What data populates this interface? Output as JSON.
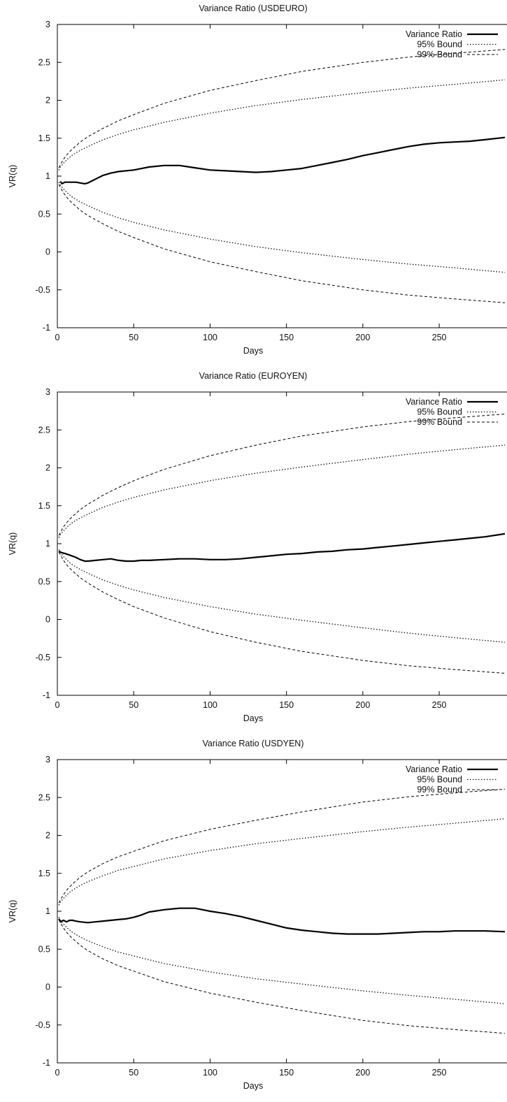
{
  "chart_data": [
    {
      "type": "line",
      "title": "Variance Ratio (USDEURO)",
      "xlabel": "Days",
      "ylabel": "VR(q)",
      "xlim": [
        0,
        293
      ],
      "ylim": [
        -1,
        3
      ],
      "xticks": [
        0,
        50,
        100,
        150,
        200,
        250
      ],
      "yticks": [
        -1,
        -0.5,
        0,
        0.5,
        1,
        1.5,
        2,
        2.5,
        3
      ],
      "legend_position": "top-right",
      "grid": false,
      "series": [
        {
          "name": "Variance Ratio",
          "style": "solid",
          "x": [
            2,
            3,
            5,
            8,
            12,
            15,
            18,
            20,
            25,
            30,
            35,
            40,
            50,
            60,
            70,
            80,
            90,
            100,
            110,
            120,
            130,
            140,
            150,
            160,
            170,
            180,
            190,
            200,
            210,
            220,
            230,
            240,
            250,
            260,
            270,
            280,
            293
          ],
          "y": [
            0.93,
            0.9,
            0.92,
            0.92,
            0.92,
            0.91,
            0.9,
            0.91,
            0.96,
            1.01,
            1.04,
            1.06,
            1.08,
            1.12,
            1.14,
            1.14,
            1.11,
            1.08,
            1.07,
            1.06,
            1.05,
            1.06,
            1.08,
            1.1,
            1.14,
            1.18,
            1.22,
            1.27,
            1.31,
            1.35,
            1.39,
            1.42,
            1.44,
            1.45,
            1.46,
            1.48,
            1.51
          ]
        },
        {
          "name": "95% Bound",
          "style": "dotted",
          "x": [
            1,
            2,
            4,
            7,
            10,
            15,
            20,
            30,
            40,
            50,
            70,
            100,
            130,
            160,
            200,
            230,
            260,
            293
          ],
          "y_upper": [
            1.08,
            1.12,
            1.17,
            1.23,
            1.28,
            1.34,
            1.39,
            1.48,
            1.55,
            1.61,
            1.71,
            1.83,
            1.93,
            2.01,
            2.1,
            2.16,
            2.21,
            2.27
          ],
          "y_lower": [
            0.92,
            0.88,
            0.83,
            0.77,
            0.72,
            0.66,
            0.61,
            0.52,
            0.45,
            0.39,
            0.29,
            0.17,
            0.07,
            -0.01,
            -0.1,
            -0.16,
            -0.21,
            -0.27
          ]
        },
        {
          "name": "99% Bound",
          "style": "dashed",
          "x": [
            1,
            2,
            4,
            7,
            10,
            15,
            20,
            30,
            40,
            50,
            70,
            100,
            130,
            160,
            200,
            230,
            260,
            293
          ],
          "y_upper": [
            1.11,
            1.15,
            1.22,
            1.3,
            1.36,
            1.45,
            1.52,
            1.63,
            1.73,
            1.81,
            1.96,
            2.13,
            2.26,
            2.38,
            2.5,
            2.57,
            2.62,
            2.67
          ],
          "y_lower": [
            0.89,
            0.85,
            0.78,
            0.7,
            0.64,
            0.55,
            0.48,
            0.37,
            0.27,
            0.19,
            0.04,
            -0.13,
            -0.26,
            -0.38,
            -0.5,
            -0.57,
            -0.62,
            -0.67
          ]
        }
      ]
    },
    {
      "type": "line",
      "title": "Variance Ratio (EUROYEN)",
      "xlabel": "Days",
      "ylabel": "VR(q)",
      "xlim": [
        0,
        293
      ],
      "ylim": [
        -1,
        3
      ],
      "xticks": [
        0,
        50,
        100,
        150,
        200,
        250
      ],
      "yticks": [
        -1,
        -0.5,
        0,
        0.5,
        1,
        1.5,
        2,
        2.5,
        3
      ],
      "legend_position": "top-right",
      "grid": false,
      "series": [
        {
          "name": "Variance Ratio",
          "style": "solid",
          "x": [
            1,
            3,
            5,
            8,
            12,
            15,
            18,
            20,
            25,
            30,
            35,
            40,
            45,
            50,
            55,
            60,
            70,
            80,
            90,
            100,
            110,
            120,
            130,
            140,
            150,
            160,
            170,
            180,
            190,
            200,
            210,
            220,
            230,
            240,
            250,
            260,
            270,
            280,
            293
          ],
          "y": [
            0.9,
            0.88,
            0.87,
            0.85,
            0.82,
            0.79,
            0.77,
            0.77,
            0.78,
            0.79,
            0.8,
            0.78,
            0.77,
            0.77,
            0.78,
            0.78,
            0.79,
            0.8,
            0.8,
            0.79,
            0.79,
            0.8,
            0.82,
            0.84,
            0.86,
            0.87,
            0.89,
            0.9,
            0.92,
            0.93,
            0.95,
            0.97,
            0.99,
            1.01,
            1.03,
            1.05,
            1.07,
            1.09,
            1.13
          ]
        },
        {
          "name": "95% Bound",
          "style": "dotted",
          "x": [
            1,
            2,
            4,
            7,
            10,
            15,
            20,
            30,
            40,
            50,
            70,
            100,
            130,
            160,
            200,
            230,
            260,
            293
          ],
          "y_upper": [
            1.08,
            1.12,
            1.17,
            1.23,
            1.28,
            1.34,
            1.39,
            1.48,
            1.55,
            1.61,
            1.71,
            1.83,
            1.93,
            2.01,
            2.11,
            2.18,
            2.24,
            2.3
          ],
          "y_lower": [
            0.92,
            0.88,
            0.83,
            0.77,
            0.72,
            0.66,
            0.61,
            0.52,
            0.45,
            0.39,
            0.29,
            0.17,
            0.07,
            -0.01,
            -0.11,
            -0.18,
            -0.24,
            -0.3
          ]
        },
        {
          "name": "99% Bound",
          "style": "dashed",
          "x": [
            1,
            2,
            4,
            7,
            10,
            15,
            20,
            30,
            40,
            50,
            70,
            100,
            130,
            160,
            200,
            230,
            260,
            293
          ],
          "y_upper": [
            1.11,
            1.15,
            1.22,
            1.3,
            1.36,
            1.45,
            1.52,
            1.64,
            1.74,
            1.83,
            1.98,
            2.16,
            2.3,
            2.42,
            2.54,
            2.61,
            2.66,
            2.71
          ],
          "y_lower": [
            0.89,
            0.85,
            0.78,
            0.7,
            0.64,
            0.55,
            0.48,
            0.36,
            0.26,
            0.17,
            0.02,
            -0.16,
            -0.3,
            -0.42,
            -0.54,
            -0.61,
            -0.66,
            -0.71
          ]
        }
      ]
    },
    {
      "type": "line",
      "title": "Variance Ratio (USDYEN)",
      "xlabel": "Days",
      "ylabel": "VR(q)",
      "xlim": [
        0,
        293
      ],
      "ylim": [
        -1,
        3
      ],
      "xticks": [
        0,
        50,
        100,
        150,
        200,
        250
      ],
      "yticks": [
        -1,
        -0.5,
        0,
        0.5,
        1,
        1.5,
        2,
        2.5,
        3
      ],
      "legend_position": "top-right",
      "grid": false,
      "series": [
        {
          "name": "Variance Ratio",
          "style": "solid",
          "x": [
            1,
            2,
            4,
            6,
            8,
            10,
            12,
            15,
            20,
            25,
            30,
            35,
            40,
            45,
            50,
            55,
            60,
            70,
            80,
            90,
            95,
            100,
            110,
            120,
            130,
            140,
            150,
            160,
            170,
            180,
            190,
            200,
            210,
            220,
            230,
            240,
            250,
            260,
            270,
            280,
            293
          ],
          "y": [
            0.9,
            0.86,
            0.88,
            0.86,
            0.88,
            0.88,
            0.87,
            0.86,
            0.85,
            0.86,
            0.87,
            0.88,
            0.89,
            0.9,
            0.92,
            0.95,
            0.99,
            1.02,
            1.04,
            1.04,
            1.02,
            1.0,
            0.97,
            0.93,
            0.88,
            0.83,
            0.78,
            0.75,
            0.73,
            0.71,
            0.7,
            0.7,
            0.7,
            0.71,
            0.72,
            0.73,
            0.73,
            0.74,
            0.74,
            0.74,
            0.73
          ]
        },
        {
          "name": "95% Bound",
          "style": "dotted",
          "x": [
            1,
            2,
            4,
            7,
            10,
            15,
            20,
            30,
            40,
            50,
            70,
            100,
            130,
            160,
            200,
            230,
            260,
            293
          ],
          "y_upper": [
            1.08,
            1.12,
            1.17,
            1.23,
            1.28,
            1.34,
            1.39,
            1.47,
            1.54,
            1.59,
            1.69,
            1.8,
            1.89,
            1.96,
            2.05,
            2.11,
            2.16,
            2.22
          ],
          "y_lower": [
            0.92,
            0.88,
            0.83,
            0.77,
            0.72,
            0.66,
            0.61,
            0.53,
            0.46,
            0.41,
            0.31,
            0.2,
            0.11,
            0.04,
            -0.05,
            -0.11,
            -0.16,
            -0.22
          ]
        },
        {
          "name": "99% Bound",
          "style": "dashed",
          "x": [
            1,
            2,
            4,
            7,
            10,
            15,
            20,
            30,
            40,
            50,
            70,
            100,
            130,
            160,
            200,
            230,
            260,
            293
          ],
          "y_upper": [
            1.11,
            1.15,
            1.22,
            1.3,
            1.36,
            1.45,
            1.52,
            1.63,
            1.72,
            1.79,
            1.93,
            2.08,
            2.2,
            2.31,
            2.44,
            2.51,
            2.56,
            2.61
          ],
          "y_lower": [
            0.89,
            0.85,
            0.78,
            0.7,
            0.64,
            0.55,
            0.48,
            0.37,
            0.28,
            0.21,
            0.07,
            -0.08,
            -0.2,
            -0.31,
            -0.44,
            -0.51,
            -0.56,
            -0.61
          ]
        }
      ]
    }
  ]
}
